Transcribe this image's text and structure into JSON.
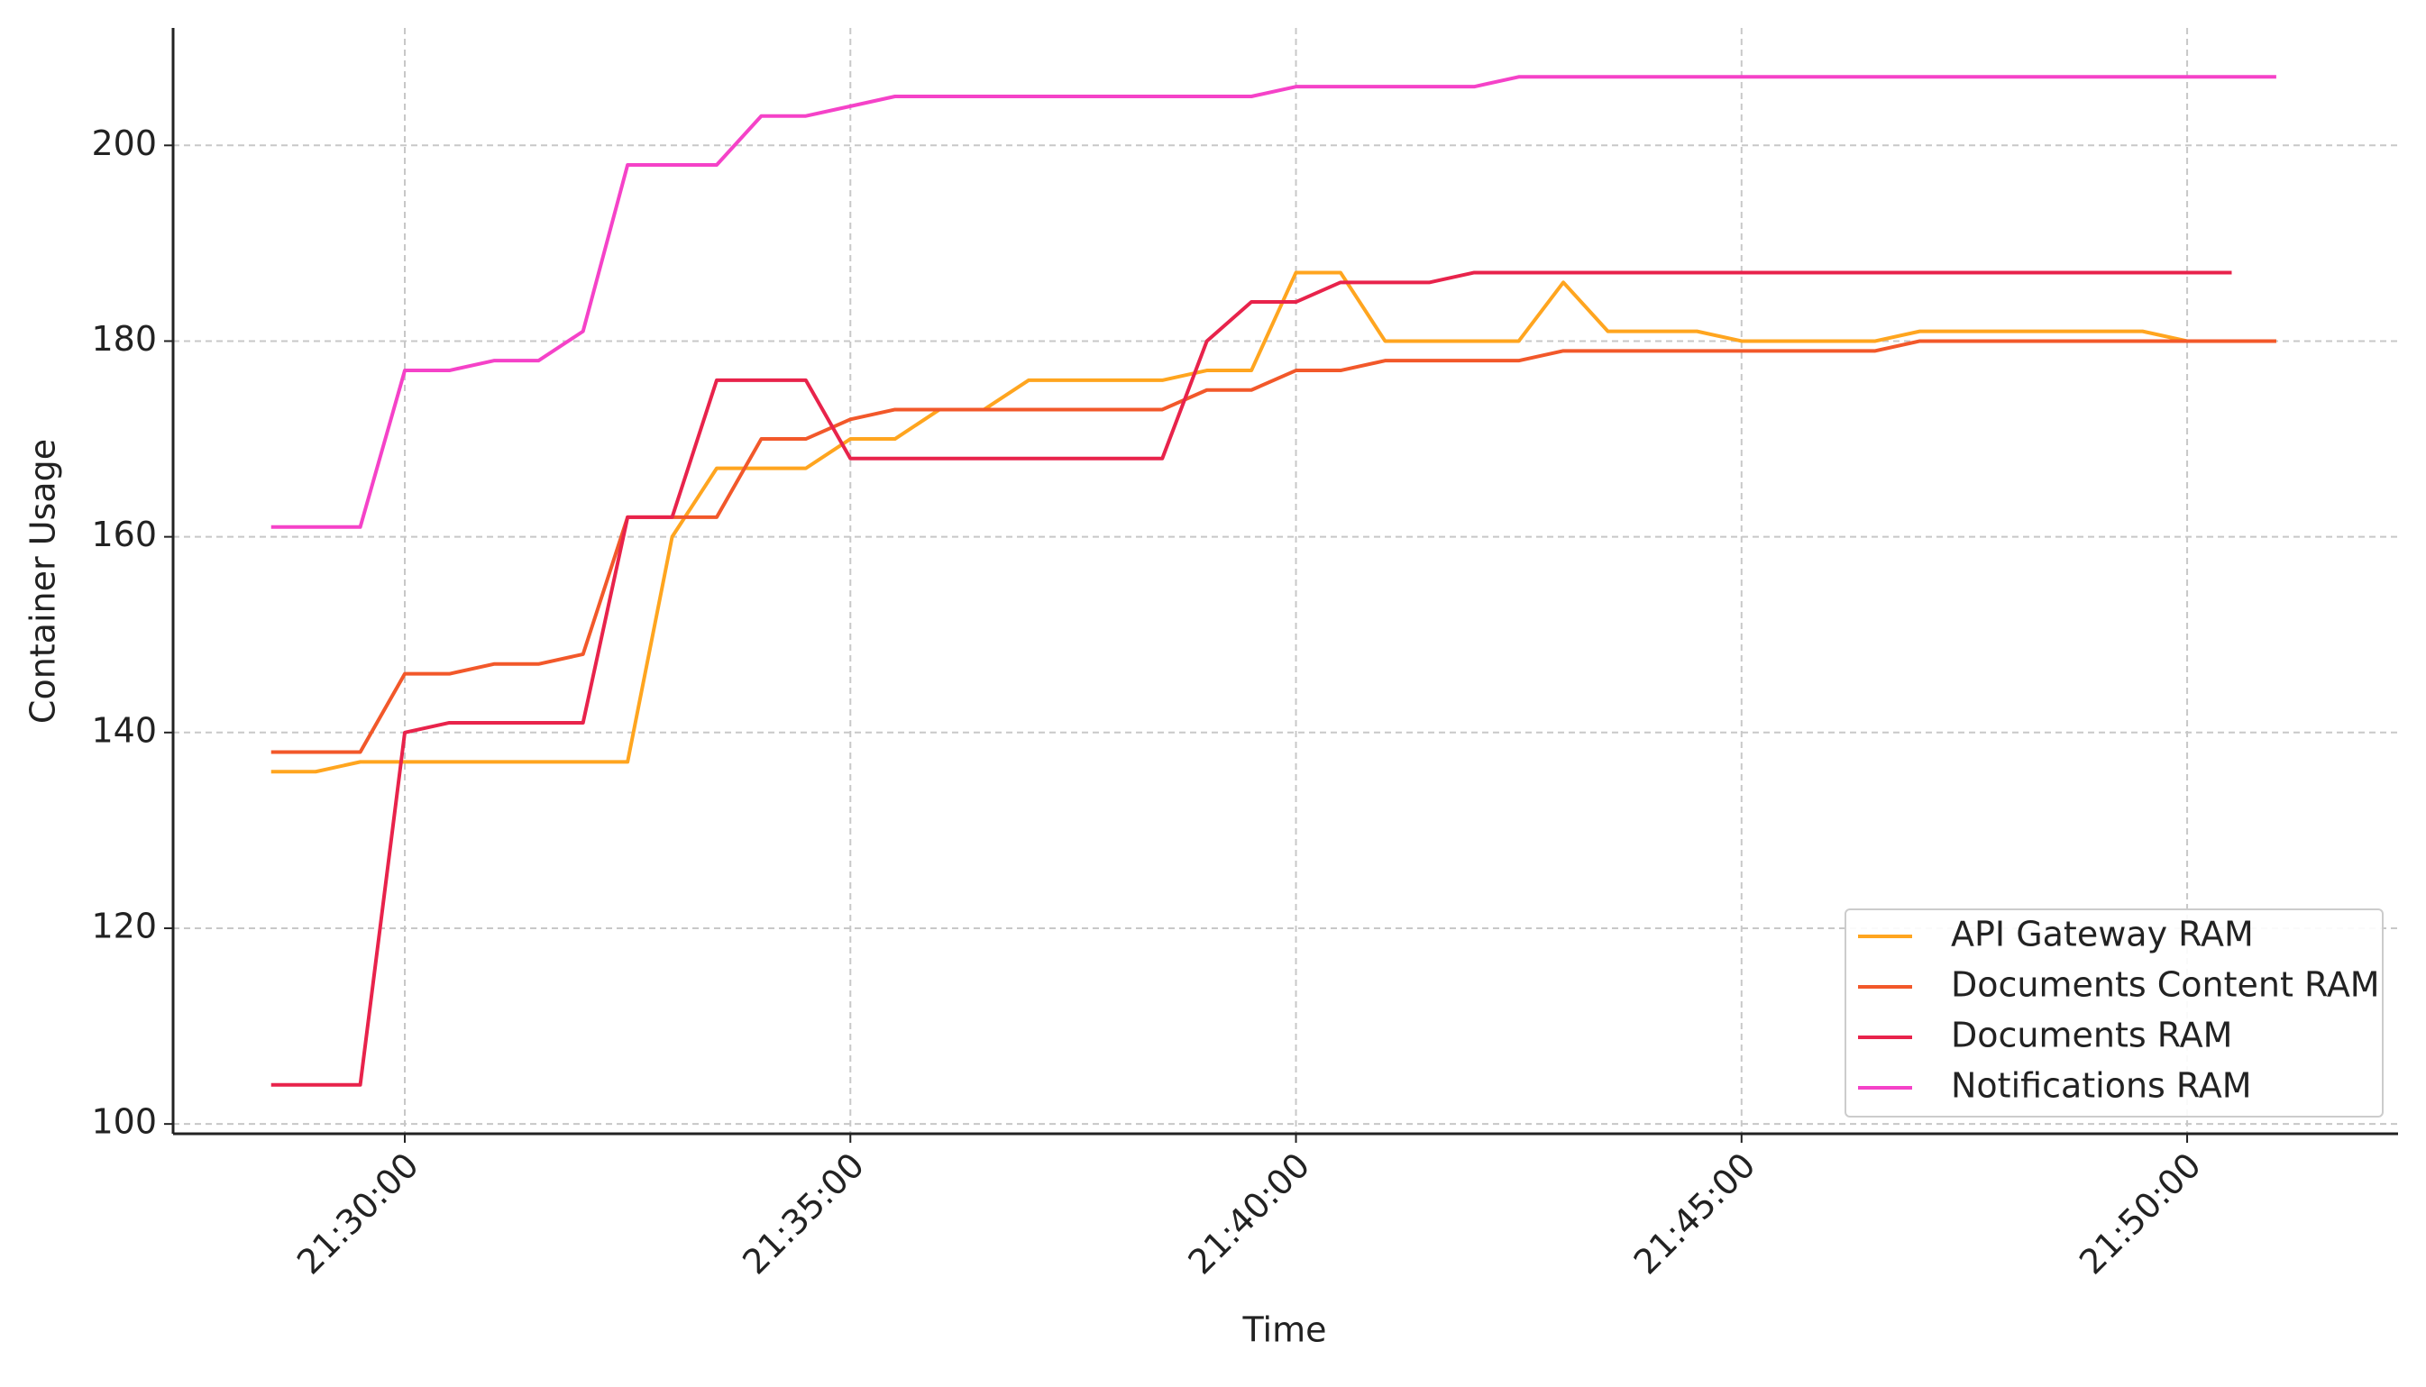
{
  "chart_data": {
    "type": "line",
    "x_label": "Time",
    "y_label": "Container Usage",
    "x": [
      "21:28:30",
      "21:29:00",
      "21:29:30",
      "21:30:00",
      "21:30:30",
      "21:31:00",
      "21:31:30",
      "21:32:00",
      "21:32:30",
      "21:33:00",
      "21:33:30",
      "21:34:00",
      "21:34:30",
      "21:35:00",
      "21:35:30",
      "21:36:00",
      "21:36:30",
      "21:37:00",
      "21:37:30",
      "21:38:00",
      "21:38:30",
      "21:39:00",
      "21:39:30",
      "21:40:00",
      "21:40:30",
      "21:41:00",
      "21:41:30",
      "21:42:00",
      "21:42:30",
      "21:43:00",
      "21:43:30",
      "21:44:00",
      "21:44:30",
      "21:45:00",
      "21:45:30",
      "21:46:00",
      "21:46:30",
      "21:47:00",
      "21:47:30",
      "21:48:00",
      "21:48:30",
      "21:49:00",
      "21:49:30",
      "21:50:00",
      "21:50:30",
      "21:51:00"
    ],
    "series": [
      {
        "name": "API Gateway RAM",
        "color": "#ffa51f",
        "values": [
          136,
          136,
          137,
          137,
          137,
          137,
          137,
          137,
          137,
          160,
          167,
          167,
          167,
          170,
          170,
          173,
          173,
          176,
          176,
          176,
          176,
          177,
          177,
          187,
          187,
          180,
          180,
          180,
          180,
          186,
          181,
          181,
          181,
          180,
          180,
          180,
          180,
          181,
          181,
          181,
          181,
          181,
          181,
          180,
          180,
          180
        ]
      },
      {
        "name": "Documents Content RAM",
        "color": "#f2582a",
        "values": [
          138,
          138,
          138,
          146,
          146,
          147,
          147,
          148,
          162,
          162,
          162,
          170,
          170,
          172,
          173,
          173,
          173,
          173,
          173,
          173,
          173,
          175,
          175,
          177,
          177,
          178,
          178,
          178,
          178,
          179,
          179,
          179,
          179,
          179,
          179,
          179,
          179,
          180,
          180,
          180,
          180,
          180,
          180,
          180,
          180,
          180
        ]
      },
      {
        "name": "Documents RAM",
        "color": "#e8234b",
        "values": [
          104,
          104,
          104,
          140,
          141,
          141,
          141,
          141,
          162,
          162,
          176,
          176,
          176,
          168,
          168,
          168,
          168,
          168,
          168,
          168,
          168,
          180,
          184,
          184,
          186,
          186,
          186,
          187,
          187,
          187,
          187,
          187,
          187,
          187,
          187,
          187,
          187,
          187,
          187,
          187,
          187,
          187,
          187,
          187,
          187,
          null
        ]
      },
      {
        "name": "Notifications RAM",
        "color": "#f542c8",
        "values": [
          161,
          161,
          161,
          177,
          177,
          178,
          178,
          181,
          198,
          198,
          198,
          203,
          203,
          204,
          205,
          205,
          205,
          205,
          205,
          205,
          205,
          205,
          205,
          206,
          206,
          206,
          206,
          206,
          207,
          207,
          207,
          207,
          207,
          207,
          207,
          207,
          207,
          207,
          207,
          207,
          207,
          207,
          207,
          207,
          207,
          207
        ]
      }
    ],
    "xlim": [
      "21:27:24",
      "21:52:22"
    ],
    "xticks": [
      "21:30:00",
      "21:35:00",
      "21:40:00",
      "21:45:00",
      "21:50:00"
    ],
    "ylim": [
      99,
      212
    ],
    "yticks": [
      100,
      120,
      140,
      160,
      180,
      200
    ],
    "grid": true,
    "legend": "lower right"
  }
}
